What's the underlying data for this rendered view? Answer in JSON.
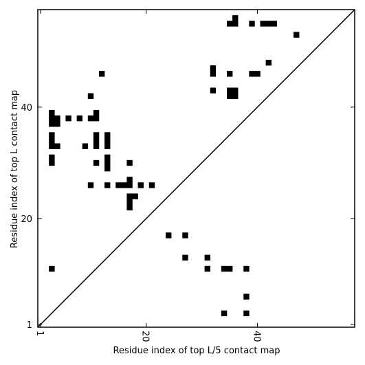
{
  "chart_data": {
    "type": "heatmap",
    "xlabel": "Residue index of top L/5 contact map",
    "ylabel": "Residue index of top L contact map",
    "xlim": [
      0.5,
      57.5
    ],
    "ylim": [
      0.5,
      57.5
    ],
    "xticks": [
      1,
      20,
      40
    ],
    "yticks": [
      1,
      20,
      40
    ],
    "xtick_labels": [
      "1",
      "20",
      "40"
    ],
    "ytick_labels": [
      "1",
      "20",
      "40"
    ],
    "diagonal": true,
    "grid": false,
    "cell_color": "#000000",
    "upper_contacts": [
      [
        36,
        56
      ],
      [
        35,
        55
      ],
      [
        36,
        55
      ],
      [
        39,
        55
      ],
      [
        41,
        55
      ],
      [
        42,
        55
      ],
      [
        43,
        55
      ],
      [
        47,
        53
      ],
      [
        42,
        48
      ],
      [
        32,
        47
      ],
      [
        32,
        46
      ],
      [
        35,
        46
      ],
      [
        39,
        46
      ],
      [
        40,
        46
      ],
      [
        12,
        46
      ],
      [
        32,
        43
      ],
      [
        35,
        43
      ],
      [
        36,
        43
      ],
      [
        35,
        42
      ],
      [
        36,
        42
      ],
      [
        10,
        42
      ],
      [
        3,
        39
      ],
      [
        11,
        39
      ],
      [
        3,
        38
      ],
      [
        4,
        38
      ],
      [
        6,
        38
      ],
      [
        8,
        38
      ],
      [
        10,
        38
      ],
      [
        11,
        38
      ],
      [
        3,
        37
      ],
      [
        4,
        37
      ],
      [
        3,
        35
      ],
      [
        11,
        35
      ],
      [
        13,
        35
      ],
      [
        3,
        34
      ],
      [
        11,
        34
      ],
      [
        13,
        34
      ],
      [
        3,
        33
      ],
      [
        4,
        33
      ],
      [
        9,
        33
      ],
      [
        11,
        33
      ],
      [
        13,
        33
      ],
      [
        3,
        30
      ],
      [
        3,
        31
      ],
      [
        11,
        30
      ],
      [
        13,
        30
      ],
      [
        13,
        31
      ],
      [
        17,
        30
      ],
      [
        13,
        29
      ],
      [
        17,
        27
      ],
      [
        10,
        26
      ],
      [
        13,
        26
      ],
      [
        15,
        26
      ],
      [
        16,
        26
      ],
      [
        17,
        26
      ],
      [
        19,
        26
      ],
      [
        21,
        26
      ],
      [
        17,
        24
      ],
      [
        18,
        24
      ],
      [
        17,
        23
      ],
      [
        17,
        22
      ]
    ],
    "lower_contacts": [
      [
        24,
        17
      ],
      [
        27,
        17
      ],
      [
        27,
        13
      ],
      [
        31,
        13
      ],
      [
        3,
        11
      ],
      [
        31,
        11
      ],
      [
        34,
        11
      ],
      [
        35,
        11
      ],
      [
        38,
        11
      ],
      [
        38,
        6
      ],
      [
        34,
        3
      ],
      [
        38,
        3
      ]
    ]
  }
}
